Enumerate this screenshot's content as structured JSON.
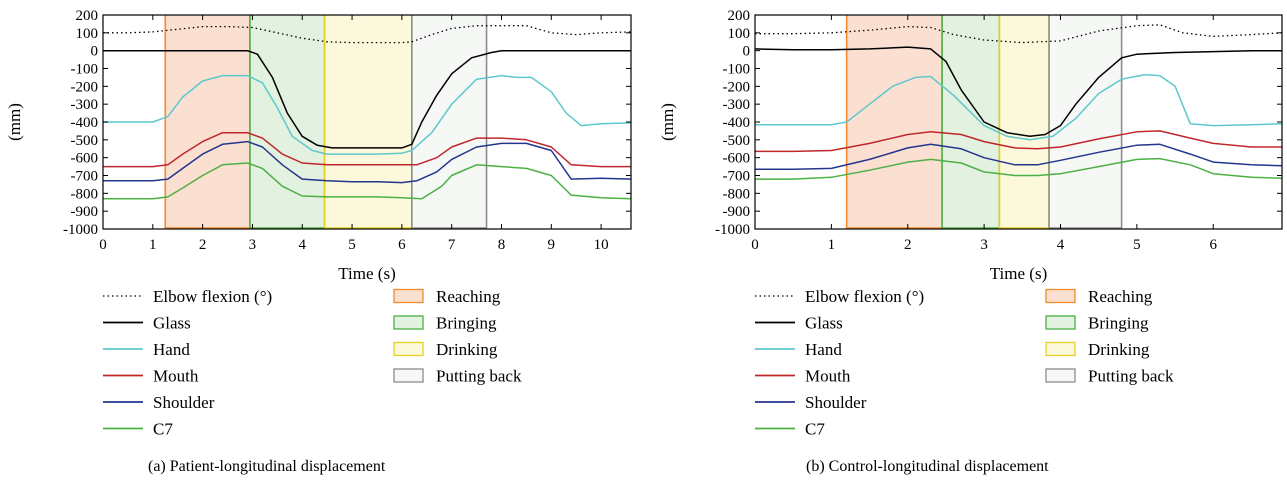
{
  "colors": {
    "elbow": "#000000",
    "glass": "#000000",
    "hand": "#5ec8cc",
    "mouth": "#c0262b",
    "shoulder": "#24358e",
    "c7": "#4cb043",
    "reaching_fill": "#fbe0d2",
    "reaching_edge": "#f08a2c",
    "bringing_fill": "#e2f1e0",
    "bringing_edge": "#4cb043",
    "drinking_fill": "#fbf8dc",
    "drinking_edge": "#e6d11f",
    "putting_fill": "#f5f8f5",
    "putting_edge": "#8c8c8c"
  },
  "legend": {
    "lines": [
      {
        "label": "Elbow flexion (°)",
        "style": "dotted",
        "color": "#000000"
      },
      {
        "label": "Glass",
        "style": "solid",
        "color": "#000000"
      },
      {
        "label": "Hand",
        "style": "solid",
        "color": "#5ec8cc"
      },
      {
        "label": "Mouth",
        "style": "solid",
        "color": "#c0262b"
      },
      {
        "label": "Shoulder",
        "style": "solid",
        "color": "#24358e"
      },
      {
        "label": "C7",
        "style": "solid",
        "color": "#4cb043"
      }
    ],
    "phases": [
      {
        "label": "Reaching",
        "fill": "#fbe0d2",
        "edge": "#f08a2c"
      },
      {
        "label": "Bringing",
        "fill": "#e2f1e0",
        "edge": "#4cb043"
      },
      {
        "label": "Drinking",
        "fill": "#fbf8dc",
        "edge": "#e6d11f"
      },
      {
        "label": "Putting back",
        "fill": "#f5f8f5",
        "edge": "#8c8c8c"
      }
    ]
  },
  "chart_data": [
    {
      "type": "line",
      "caption": "(a)  Patient-longitudinal displacement",
      "xlabel": "Time (s)",
      "ylabel": "(mm)",
      "xlim": [
        0,
        10.6
      ],
      "ylim": [
        -1000,
        200
      ],
      "xticks": [
        0,
        1,
        2,
        3,
        4,
        5,
        6,
        7,
        8,
        9,
        10
      ],
      "yticks": [
        200,
        100,
        0,
        -100,
        -200,
        -300,
        -400,
        -500,
        -600,
        -700,
        -800,
        -900,
        -1000
      ],
      "phases": [
        {
          "name": "Reaching",
          "start": 1.25,
          "end": 2.95
        },
        {
          "name": "Bringing",
          "start": 2.95,
          "end": 4.45
        },
        {
          "name": "Drinking",
          "start": 4.45,
          "end": 6.2
        },
        {
          "name": "Putting back",
          "start": 6.2,
          "end": 7.7
        }
      ],
      "series": [
        {
          "name": "Elbow flexion (°)",
          "x": [
            0,
            0.5,
            1,
            1.5,
            2,
            2.5,
            3,
            3.5,
            4,
            4.5,
            5,
            5.5,
            6,
            6.2,
            6.6,
            7,
            7.5,
            8,
            8.5,
            9,
            9.5,
            10,
            10.6
          ],
          "y": [
            100,
            100,
            105,
            120,
            135,
            135,
            130,
            100,
            70,
            50,
            45,
            45,
            45,
            50,
            90,
            125,
            140,
            140,
            140,
            100,
            90,
            100,
            105
          ]
        },
        {
          "name": "Glass",
          "x": [
            0,
            1,
            2,
            2.9,
            3.1,
            3.4,
            3.7,
            4,
            4.3,
            4.6,
            5,
            5.5,
            6,
            6.2,
            6.4,
            6.7,
            7,
            7.4,
            7.8,
            8,
            8.5,
            9,
            10,
            10.6
          ],
          "y": [
            0,
            0,
            0,
            0,
            -20,
            -150,
            -350,
            -480,
            -530,
            -545,
            -545,
            -545,
            -545,
            -525,
            -400,
            -250,
            -130,
            -40,
            -10,
            0,
            0,
            0,
            0,
            0
          ]
        },
        {
          "name": "Hand",
          "x": [
            0,
            0.5,
            1,
            1.3,
            1.6,
            2,
            2.4,
            2.9,
            3.2,
            3.5,
            3.8,
            4.2,
            4.5,
            5,
            5.5,
            6,
            6.2,
            6.6,
            7,
            7.5,
            8,
            8.3,
            8.6,
            9,
            9.3,
            9.6,
            10,
            10.6
          ],
          "y": [
            -400,
            -400,
            -400,
            -370,
            -260,
            -170,
            -140,
            -140,
            -180,
            -320,
            -480,
            -560,
            -580,
            -580,
            -580,
            -575,
            -560,
            -460,
            -300,
            -160,
            -140,
            -150,
            -150,
            -230,
            -350,
            -420,
            -410,
            -405
          ]
        },
        {
          "name": "Mouth",
          "x": [
            0,
            0.5,
            1,
            1.3,
            1.6,
            2,
            2.4,
            2.9,
            3.2,
            3.6,
            4,
            4.5,
            5,
            5.5,
            6,
            6.3,
            6.7,
            7,
            7.5,
            8,
            8.5,
            9,
            9.4,
            10,
            10.6
          ],
          "y": [
            -650,
            -650,
            -650,
            -640,
            -580,
            -510,
            -460,
            -460,
            -490,
            -580,
            -630,
            -640,
            -640,
            -640,
            -640,
            -640,
            -600,
            -540,
            -490,
            -490,
            -500,
            -540,
            -640,
            -650,
            -650
          ]
        },
        {
          "name": "Shoulder",
          "x": [
            0,
            0.5,
            1,
            1.3,
            1.6,
            2,
            2.4,
            2.9,
            3.2,
            3.6,
            4,
            4.5,
            5,
            5.5,
            6,
            6.3,
            6.7,
            7,
            7.5,
            8,
            8.5,
            9,
            9.4,
            10,
            10.6
          ],
          "y": [
            -730,
            -730,
            -730,
            -720,
            -660,
            -580,
            -525,
            -510,
            -540,
            -640,
            -720,
            -730,
            -735,
            -735,
            -740,
            -730,
            -680,
            -610,
            -540,
            -520,
            -520,
            -560,
            -720,
            -715,
            -720
          ]
        },
        {
          "name": "C7",
          "x": [
            0,
            0.5,
            1,
            1.3,
            1.6,
            2,
            2.4,
            2.9,
            3.2,
            3.6,
            4,
            4.5,
            5,
            5.5,
            6,
            6.4,
            6.8,
            7,
            7.5,
            8,
            8.5,
            9,
            9.4,
            10,
            10.6
          ],
          "y": [
            -830,
            -830,
            -830,
            -820,
            -770,
            -700,
            -640,
            -630,
            -660,
            -760,
            -815,
            -820,
            -820,
            -820,
            -825,
            -830,
            -760,
            -700,
            -640,
            -650,
            -660,
            -700,
            -810,
            -825,
            -830
          ]
        }
      ]
    },
    {
      "type": "line",
      "caption": "(b)  Control-longitudinal displacement",
      "xlabel": "Time (s)",
      "ylabel": "(mm)",
      "xlim": [
        0,
        6.9
      ],
      "ylim": [
        -1000,
        200
      ],
      "xticks": [
        0,
        1,
        2,
        3,
        4,
        5,
        6
      ],
      "yticks": [
        200,
        100,
        0,
        -100,
        -200,
        -300,
        -400,
        -500,
        -600,
        -700,
        -800,
        -900,
        -1000
      ],
      "phases": [
        {
          "name": "Reaching",
          "start": 1.2,
          "end": 2.45
        },
        {
          "name": "Bringing",
          "start": 2.45,
          "end": 3.2
        },
        {
          "name": "Drinking",
          "start": 3.2,
          "end": 3.85
        },
        {
          "name": "Putting back",
          "start": 3.85,
          "end": 4.8
        }
      ],
      "series": [
        {
          "name": "Elbow flexion (°)",
          "x": [
            0,
            0.5,
            1,
            1.5,
            2,
            2.3,
            2.6,
            3,
            3.5,
            4,
            4.5,
            5,
            5.3,
            5.6,
            6,
            6.5,
            6.9
          ],
          "y": [
            95,
            95,
            100,
            115,
            135,
            130,
            90,
            60,
            45,
            55,
            110,
            140,
            145,
            100,
            80,
            90,
            100
          ]
        },
        {
          "name": "Glass",
          "x": [
            0,
            0.5,
            1,
            1.5,
            2,
            2.3,
            2.5,
            2.7,
            3,
            3.3,
            3.6,
            3.8,
            4,
            4.2,
            4.5,
            4.8,
            5,
            5.5,
            6,
            6.5,
            6.9
          ],
          "y": [
            10,
            5,
            5,
            10,
            20,
            10,
            -60,
            -220,
            -400,
            -460,
            -480,
            -470,
            -420,
            -300,
            -150,
            -40,
            -20,
            -10,
            -5,
            0,
            0
          ]
        },
        {
          "name": "Hand",
          "x": [
            0,
            0.5,
            1,
            1.2,
            1.5,
            1.8,
            2.1,
            2.3,
            2.6,
            3,
            3.3,
            3.6,
            3.9,
            4.2,
            4.5,
            4.8,
            5.1,
            5.3,
            5.5,
            5.7,
            6,
            6.5,
            6.9
          ],
          "y": [
            -415,
            -415,
            -415,
            -400,
            -300,
            -200,
            -150,
            -145,
            -250,
            -420,
            -480,
            -500,
            -480,
            -380,
            -240,
            -160,
            -135,
            -140,
            -200,
            -410,
            -420,
            -415,
            -410
          ]
        },
        {
          "name": "Mouth",
          "x": [
            0,
            0.5,
            1,
            1.5,
            2,
            2.3,
            2.7,
            3,
            3.4,
            3.7,
            4,
            4.5,
            5,
            5.3,
            5.7,
            6,
            6.5,
            6.9
          ],
          "y": [
            -565,
            -565,
            -560,
            -520,
            -470,
            -455,
            -470,
            -510,
            -545,
            -550,
            -540,
            -495,
            -455,
            -450,
            -490,
            -520,
            -540,
            -540
          ]
        },
        {
          "name": "Shoulder",
          "x": [
            0,
            0.5,
            1,
            1.5,
            2,
            2.3,
            2.7,
            3,
            3.4,
            3.7,
            4,
            4.5,
            5,
            5.3,
            5.7,
            6,
            6.5,
            6.9
          ],
          "y": [
            -665,
            -665,
            -660,
            -610,
            -545,
            -525,
            -550,
            -600,
            -640,
            -640,
            -615,
            -570,
            -530,
            -525,
            -580,
            -625,
            -640,
            -645
          ]
        },
        {
          "name": "C7",
          "x": [
            0,
            0.5,
            1,
            1.5,
            2,
            2.3,
            2.7,
            3,
            3.4,
            3.7,
            4,
            4.5,
            5,
            5.3,
            5.7,
            6,
            6.5,
            6.9
          ],
          "y": [
            -720,
            -720,
            -710,
            -670,
            -625,
            -610,
            -630,
            -680,
            -700,
            -700,
            -690,
            -650,
            -610,
            -605,
            -640,
            -690,
            -710,
            -715
          ]
        }
      ]
    }
  ]
}
